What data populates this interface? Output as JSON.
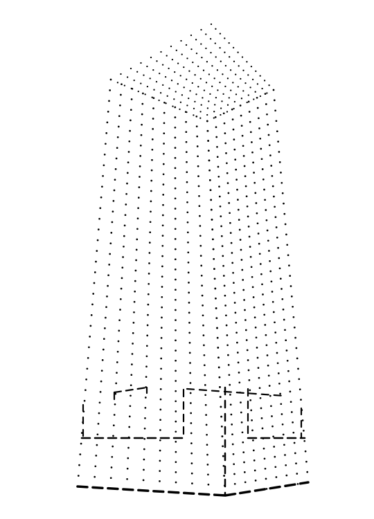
{
  "figure": {
    "style": "dotted-line-drawing",
    "subject": "tower",
    "background": "#ffffff",
    "ink": "#000000"
  }
}
